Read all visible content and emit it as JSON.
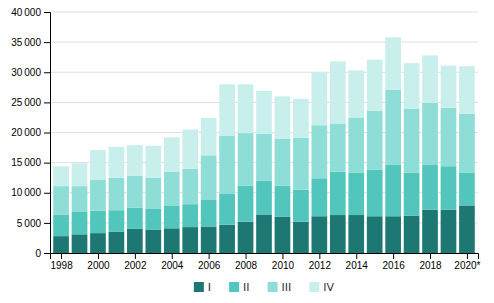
{
  "chart_data": {
    "type": "bar",
    "stacked": true,
    "x": [
      1998,
      1999,
      2000,
      2001,
      2002,
      2003,
      2004,
      2005,
      2006,
      2007,
      2008,
      2009,
      2010,
      2011,
      2012,
      2013,
      2014,
      2015,
      2016,
      2017,
      2018,
      2019,
      2020
    ],
    "series": [
      {
        "name": "I",
        "color": "#1d7874",
        "values": [
          2800,
          3100,
          3300,
          3500,
          4000,
          3900,
          4100,
          4300,
          4400,
          4700,
          5200,
          6400,
          6000,
          5200,
          6100,
          6300,
          6300,
          6100,
          6100,
          6200,
          7200,
          7200,
          7900
        ]
      },
      {
        "name": "II",
        "color": "#52c5bc",
        "values": [
          3600,
          3800,
          3700,
          3600,
          3500,
          3500,
          3700,
          3800,
          4400,
          5100,
          6000,
          5600,
          5200,
          5300,
          6300,
          7200,
          7000,
          7700,
          8500,
          7100,
          7400,
          7200,
          5400
        ]
      },
      {
        "name": "III",
        "color": "#8eddd6",
        "values": [
          4700,
          4200,
          5200,
          5400,
          5300,
          5100,
          5700,
          5900,
          7400,
          9700,
          8700,
          7800,
          7800,
          8600,
          8800,
          8000,
          9200,
          9800,
          12500,
          10600,
          10300,
          9700,
          9800
        ]
      },
      {
        "name": "IV",
        "color": "#c8efec",
        "values": [
          3300,
          3800,
          4900,
          5100,
          5100,
          5300,
          5700,
          6500,
          6200,
          8500,
          8100,
          7100,
          7000,
          6500,
          8800,
          10300,
          7800,
          8500,
          8700,
          7600,
          7900,
          7000,
          7900
        ]
      }
    ],
    "xlim": [
      1997.4,
      2020.6
    ],
    "xticks": [
      1998,
      2000,
      2002,
      2004,
      2006,
      2008,
      2010,
      2012,
      2014,
      2016,
      2018,
      {
        "value": 2020,
        "label": "2020*"
      }
    ],
    "ylim": [
      0,
      40000
    ],
    "yticks": [
      0,
      {
        "value": 5000,
        "label": "5 000"
      },
      {
        "value": 10000,
        "label": "10 000"
      },
      {
        "value": 15000,
        "label": "15 000"
      },
      {
        "value": 20000,
        "label": "20 000"
      },
      {
        "value": 25000,
        "label": "25 000"
      },
      {
        "value": 30000,
        "label": "30 000"
      },
      {
        "value": 35000,
        "label": "35 000"
      },
      {
        "value": 40000,
        "label": "40 000"
      }
    ],
    "grid": true,
    "legend": "bottom"
  }
}
